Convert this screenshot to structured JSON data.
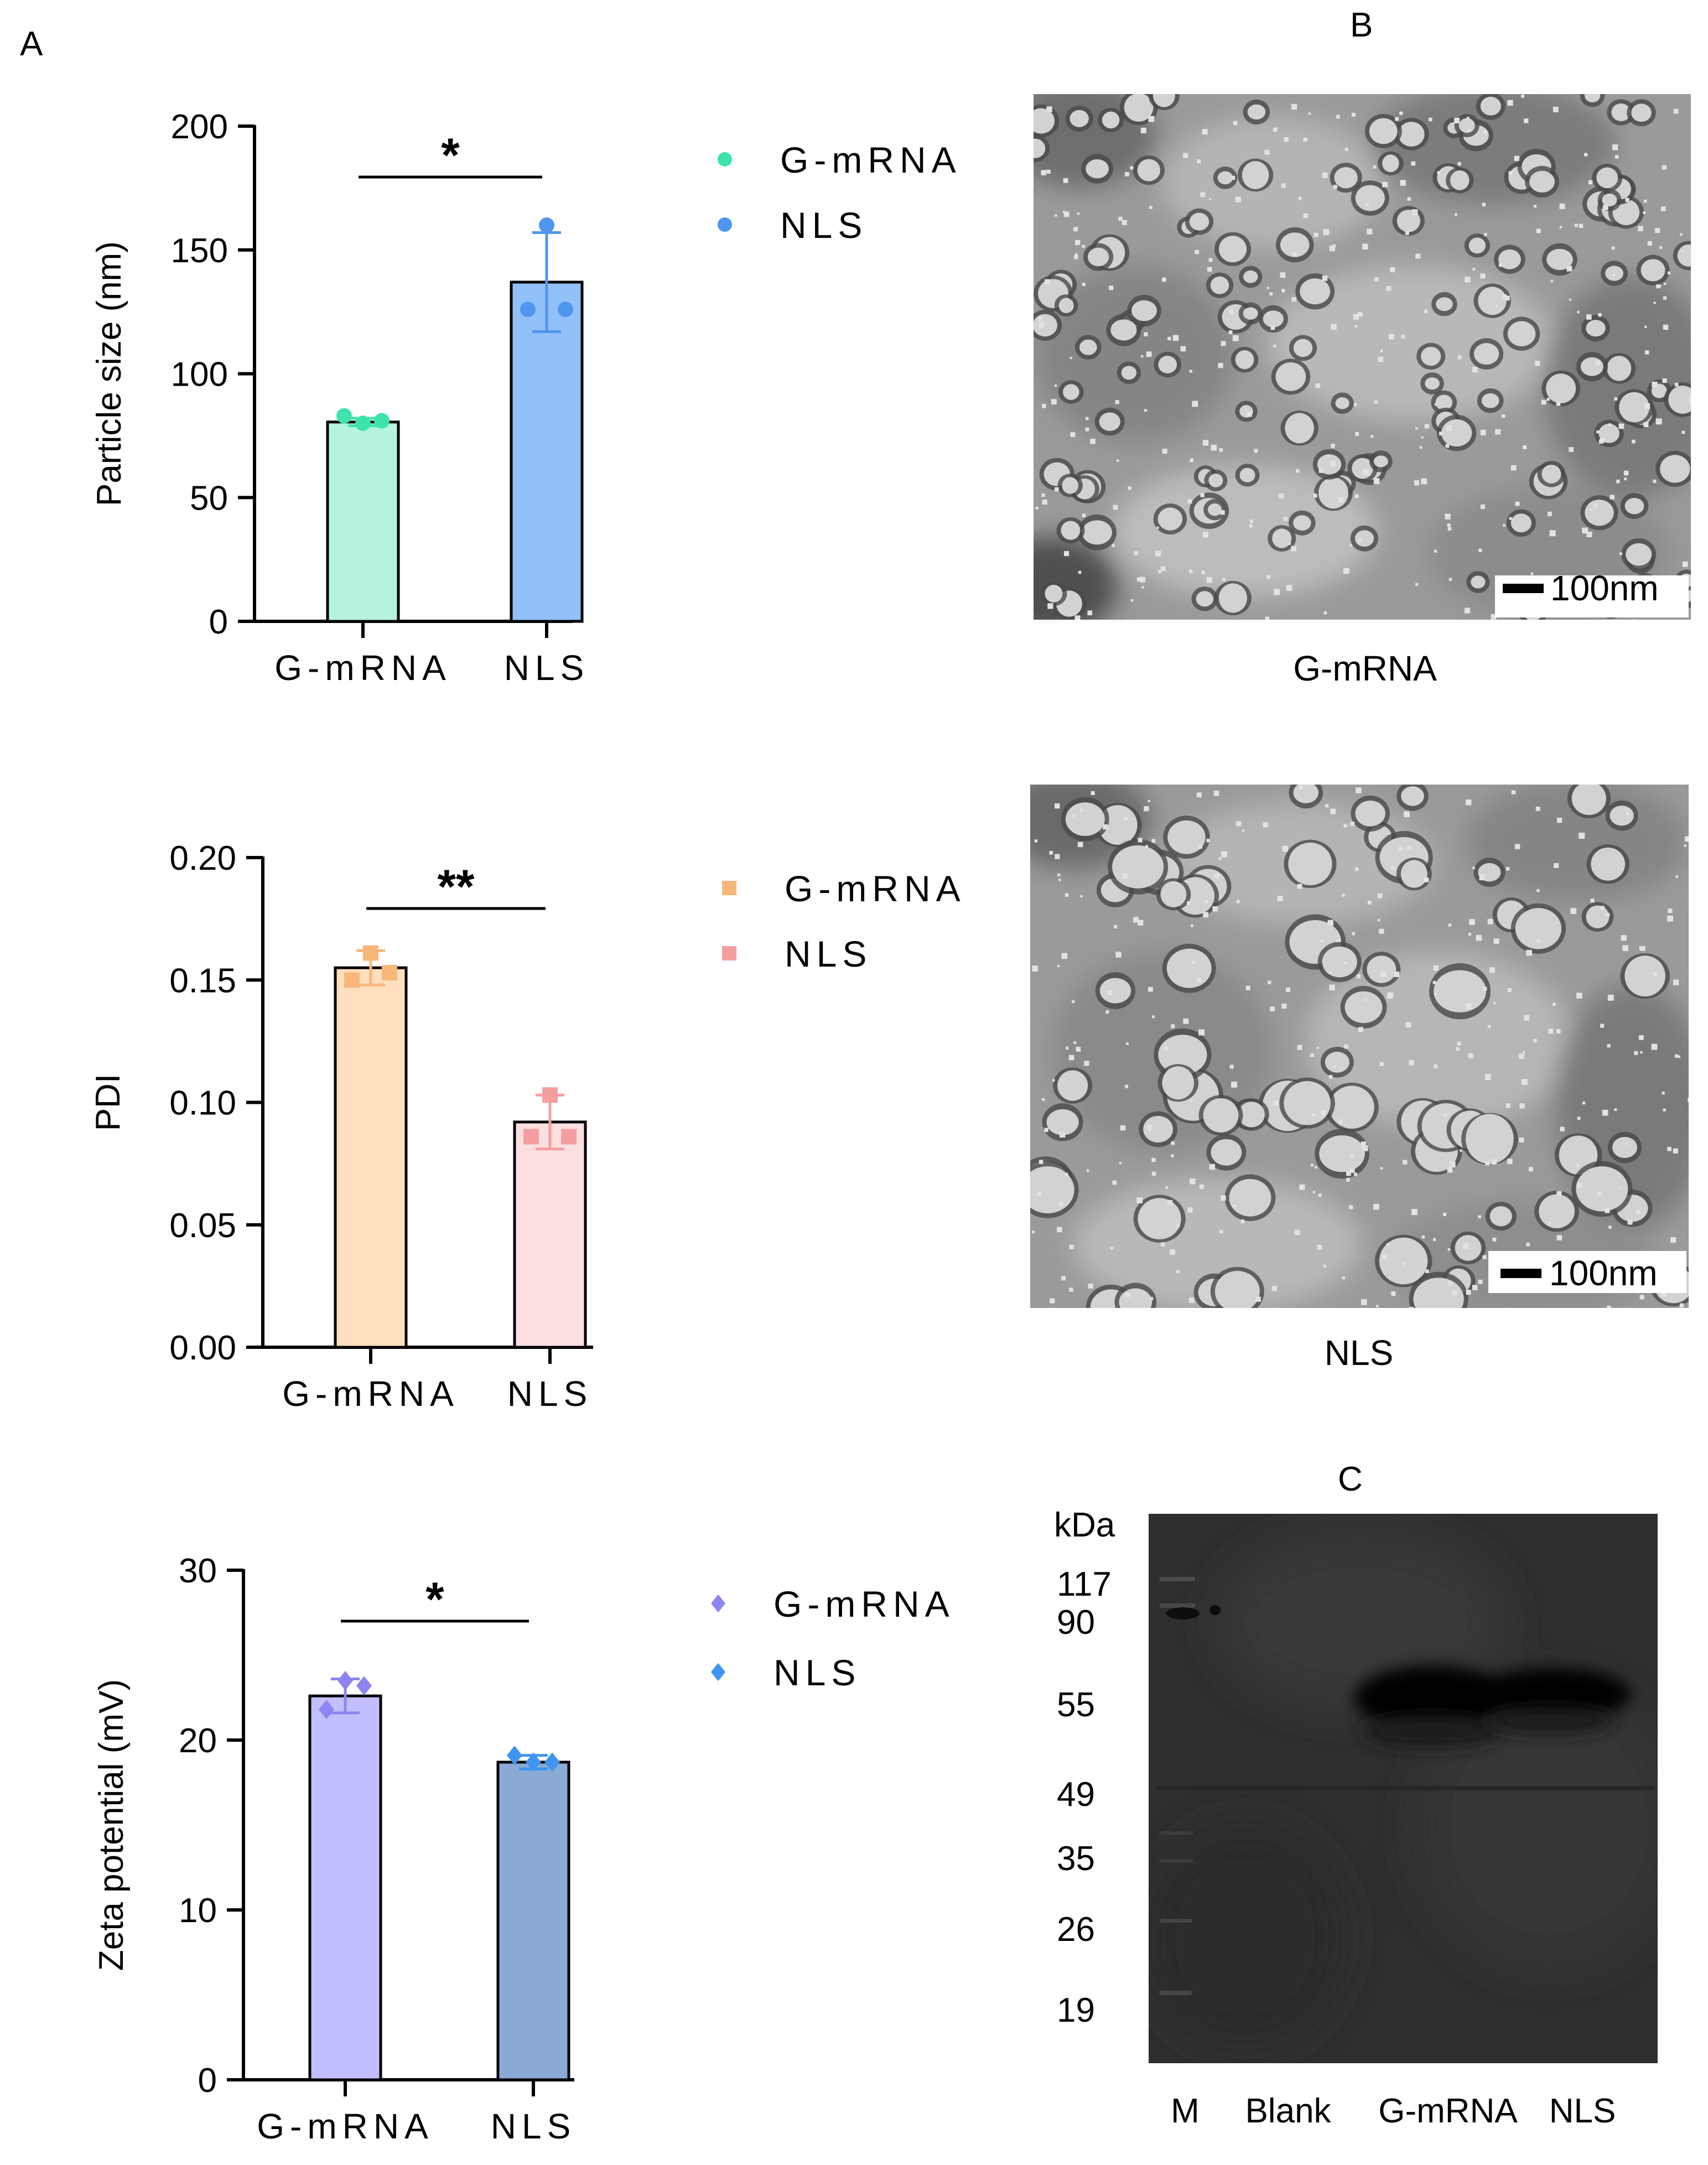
{
  "panel_labels": {
    "a": "A",
    "b": "B",
    "c": "C"
  },
  "chart_data": [
    {
      "type": "bar",
      "title": "",
      "xlabel": "",
      "ylabel": "Particle size (nm)",
      "categories": [
        "G-mRNA",
        "NLS"
      ],
      "values": [
        80.5,
        137
      ],
      "error": [
        1.5,
        20
      ],
      "points": [
        [
          80,
          83,
          81
        ],
        [
          160,
          126,
          126
        ]
      ],
      "ylim": [
        0,
        200
      ],
      "yticks": [
        "0",
        "50",
        "100",
        "150",
        "200"
      ],
      "significance": "*",
      "legend": {
        "placement": "right",
        "marker": "circle",
        "entries": [
          "G-mRNA",
          "NLS"
        ]
      },
      "fill_colors": [
        "#b5f3dc",
        "#92c1fa"
      ],
      "point_colors": [
        "#3ee3aa",
        "#4e96ee"
      ]
    },
    {
      "type": "bar",
      "title": "",
      "xlabel": "",
      "ylabel": "PDI",
      "categories": [
        "G-mRNA",
        "NLS"
      ],
      "values": [
        0.155,
        0.092
      ],
      "error": [
        0.007,
        0.011
      ],
      "points": [
        [
          0.161,
          0.15,
          0.153
        ],
        [
          0.103,
          0.086,
          0.086
        ]
      ],
      "ylim": [
        0,
        0.2
      ],
      "yticks": [
        "0.00",
        "0.05",
        "0.10",
        "0.15",
        "0.20"
      ],
      "significance": "**",
      "legend": {
        "placement": "right",
        "marker": "square",
        "entries": [
          "G-mRNA",
          "NLS"
        ]
      },
      "fill_colors": [
        "#ffdfbd",
        "#fcdfe1"
      ],
      "point_colors": [
        "#f8b77a",
        "#f59e9f"
      ]
    },
    {
      "type": "bar",
      "title": "",
      "xlabel": "",
      "ylabel": "Zeta potential (mV)",
      "categories": [
        "G-mRNA",
        "NLS"
      ],
      "values": [
        22.6,
        18.7
      ],
      "error": [
        1.0,
        0.4
      ],
      "points": [
        [
          23.5,
          21.8,
          23.2
        ],
        [
          18.7,
          19.1,
          18.7
        ]
      ],
      "ylim": [
        0,
        30
      ],
      "yticks": [
        "0",
        "10",
        "20",
        "30"
      ],
      "significance": "*",
      "legend": {
        "placement": "right",
        "marker": "diamond",
        "entries": [
          "G-mRNA",
          "NLS"
        ]
      },
      "fill_colors": [
        "#c1bffd",
        "#8aaad5"
      ],
      "point_colors": [
        "#8d85f0",
        "#3f95ef"
      ]
    }
  ],
  "tem": {
    "images": [
      {
        "caption": "G-mRNA",
        "scalebar": "100nm"
      },
      {
        "caption": "NLS",
        "scalebar": "100nm"
      }
    ]
  },
  "blot": {
    "unit": "kDa",
    "markers": [
      "117",
      "90",
      "55",
      "49",
      "35",
      "26",
      "19"
    ],
    "lanes": [
      "M",
      "Blank",
      "G-mRNA",
      "NLS"
    ]
  }
}
